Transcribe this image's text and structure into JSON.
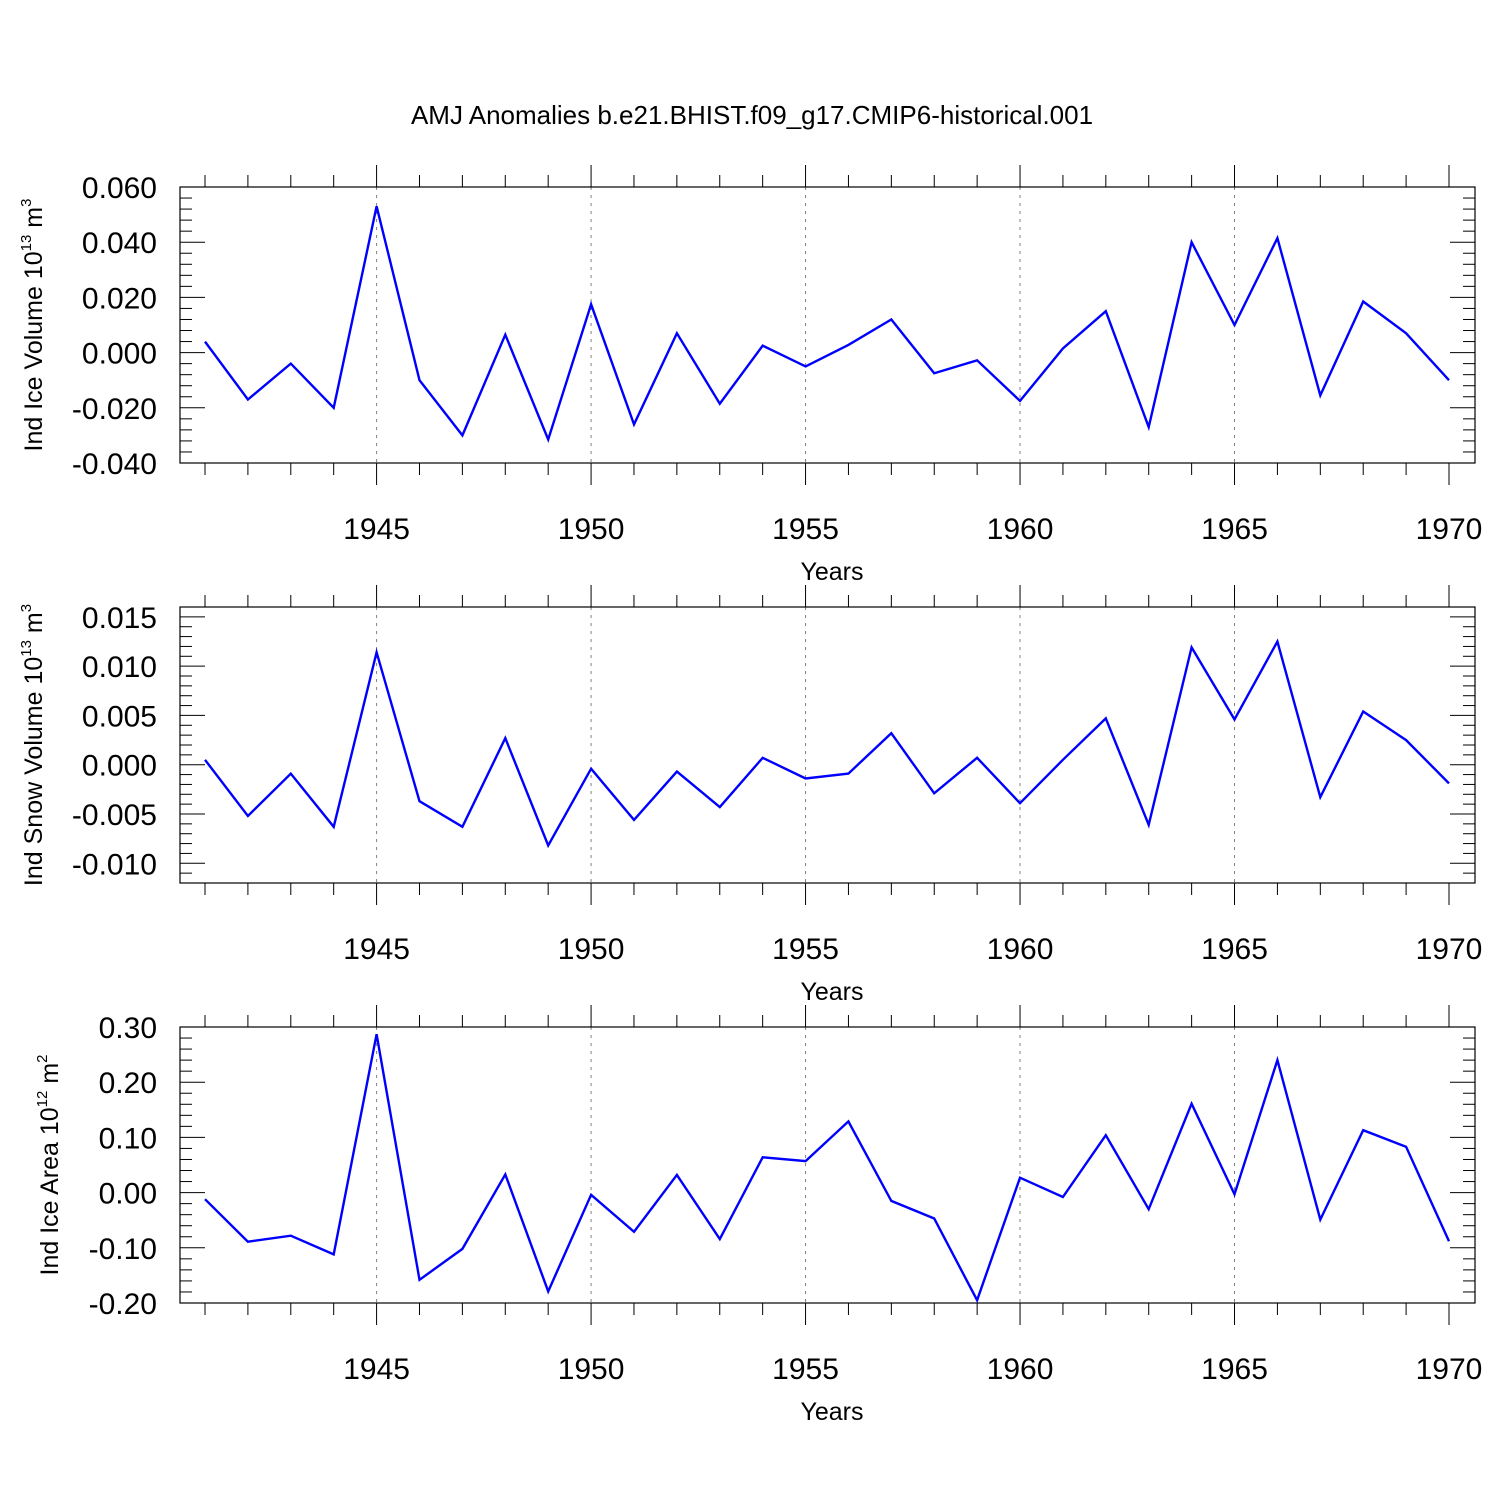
{
  "figure": {
    "title": "AMJ Anomalies b.e21.BHIST.f09_g17.CMIP6-historical.001",
    "line_color": "#0000ff",
    "axis_color": "#000000",
    "grid_color": "#808080"
  },
  "chart_data": [
    {
      "type": "line",
      "ylabel": "Ind Ice Volume 10",
      "ylabel_exp": "13",
      "ylabel_unit": " m",
      "ylabel_unit_exp": "3",
      "xlabel": "Years",
      "xlim": [
        1941,
        1970
      ],
      "ylim": [
        -0.04,
        0.06
      ],
      "xticks": [
        1945,
        1950,
        1955,
        1960,
        1965,
        1970
      ],
      "xtick_labels": [
        "1945",
        "1950",
        "1955",
        "1960",
        "1965",
        "1970"
      ],
      "yticks": [
        -0.04,
        -0.02,
        0.0,
        0.02,
        0.04,
        0.06
      ],
      "ytick_labels": [
        "-0.040",
        "-0.020",
        "0.000",
        "0.020",
        "0.040",
        "0.060"
      ],
      "grid": "vertical dashed at major x ticks",
      "x": [
        1941,
        1942,
        1943,
        1944,
        1945,
        1946,
        1947,
        1948,
        1949,
        1950,
        1951,
        1952,
        1953,
        1954,
        1955,
        1956,
        1957,
        1958,
        1959,
        1960,
        1961,
        1962,
        1963,
        1964,
        1965,
        1966,
        1967,
        1968,
        1969,
        1970
      ],
      "values": [
        0.004,
        -0.017,
        -0.004,
        -0.02,
        0.053,
        -0.01,
        -0.03,
        0.0065,
        -0.0315,
        0.0175,
        -0.026,
        0.007,
        -0.0185,
        0.0025,
        -0.005,
        0.0028,
        0.012,
        -0.0075,
        -0.0028,
        -0.0175,
        0.0015,
        0.015,
        -0.027,
        0.04,
        0.01,
        0.0415,
        -0.0155,
        0.0185,
        0.007,
        -0.01
      ]
    },
    {
      "type": "line",
      "ylabel": "Ind Snow Volume 10",
      "ylabel_exp": "13",
      "ylabel_unit": " m",
      "ylabel_unit_exp": "3",
      "xlabel": "Years",
      "xlim": [
        1941,
        1970
      ],
      "ylim": [
        -0.012,
        0.016
      ],
      "xticks": [
        1945,
        1950,
        1955,
        1960,
        1965,
        1970
      ],
      "xtick_labels": [
        "1945",
        "1950",
        "1955",
        "1960",
        "1965",
        "1970"
      ],
      "yticks": [
        -0.01,
        -0.005,
        0.0,
        0.005,
        0.01,
        0.015
      ],
      "ytick_labels": [
        "-0.010",
        "-0.005",
        "0.000",
        "0.005",
        "0.010",
        "0.015"
      ],
      "grid": "vertical dashed at major x ticks",
      "x": [
        1941,
        1942,
        1943,
        1944,
        1945,
        1946,
        1947,
        1948,
        1949,
        1950,
        1951,
        1952,
        1953,
        1954,
        1955,
        1956,
        1957,
        1958,
        1959,
        1960,
        1961,
        1962,
        1963,
        1964,
        1965,
        1966,
        1967,
        1968,
        1969,
        1970
      ],
      "values": [
        0.0005,
        -0.0052,
        -0.0009,
        -0.0063,
        0.0114,
        -0.0037,
        -0.0063,
        0.0027,
        -0.0082,
        -0.0004,
        -0.0056,
        -0.0007,
        -0.0043,
        0.0007,
        -0.0014,
        -0.0009,
        0.0032,
        -0.0029,
        0.0007,
        -0.0039,
        0.0005,
        0.0047,
        -0.0061,
        0.0119,
        0.0046,
        0.0125,
        -0.0033,
        0.0054,
        0.0025,
        -0.0019
      ]
    },
    {
      "type": "line",
      "ylabel": "Ind Ice Area 10",
      "ylabel_exp": "12",
      "ylabel_unit": " m",
      "ylabel_unit_exp": "2",
      "xlabel": "Years",
      "xlim": [
        1941,
        1970
      ],
      "ylim": [
        -0.2,
        0.3
      ],
      "xticks": [
        1945,
        1950,
        1955,
        1960,
        1965,
        1970
      ],
      "xtick_labels": [
        "1945",
        "1950",
        "1955",
        "1960",
        "1965",
        "1970"
      ],
      "yticks": [
        -0.2,
        -0.1,
        0.0,
        0.1,
        0.2,
        0.3
      ],
      "ytick_labels": [
        "-0.20",
        "-0.10",
        "0.00",
        "0.10",
        "0.20",
        "0.30"
      ],
      "grid": "vertical dashed at major x ticks",
      "x": [
        1941,
        1942,
        1943,
        1944,
        1945,
        1946,
        1947,
        1948,
        1949,
        1950,
        1951,
        1952,
        1953,
        1954,
        1955,
        1956,
        1957,
        1958,
        1959,
        1960,
        1961,
        1962,
        1963,
        1964,
        1965,
        1966,
        1967,
        1968,
        1969,
        1970
      ],
      "values": [
        -0.012,
        -0.089,
        -0.078,
        -0.112,
        0.287,
        -0.158,
        -0.102,
        0.033,
        -0.179,
        -0.004,
        -0.071,
        0.032,
        -0.084,
        0.064,
        0.057,
        0.129,
        -0.015,
        -0.047,
        -0.195,
        0.027,
        -0.008,
        0.104,
        -0.03,
        0.161,
        -0.003,
        0.24,
        -0.049,
        0.113,
        0.083,
        -0.088
      ]
    }
  ]
}
